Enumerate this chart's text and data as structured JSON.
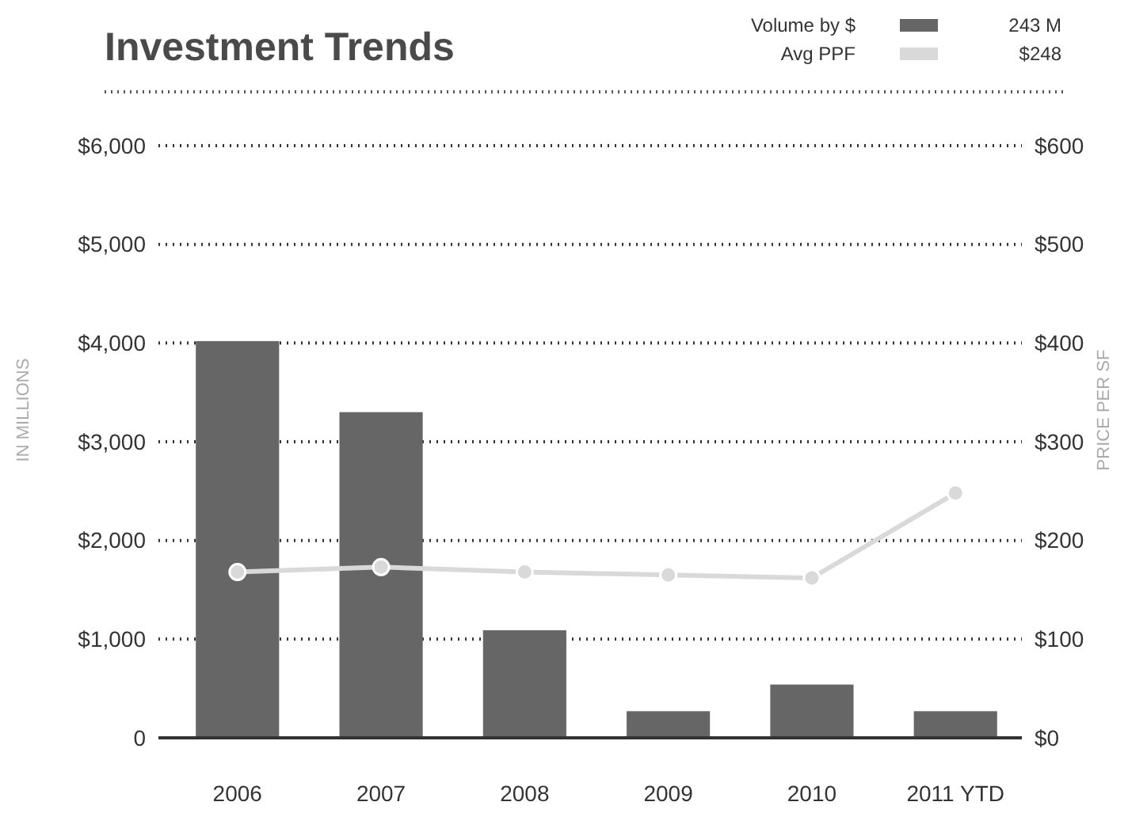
{
  "chart_data": {
    "type": "bar",
    "title": "Investment Trends",
    "ylabel": "IN MILLIONS",
    "y2label": "PRICE PER SF",
    "categories": [
      "2006",
      "2007",
      "2008",
      "2009",
      "2010",
      "2011 YTD"
    ],
    "series": [
      {
        "name": "Volume by $",
        "color": "#666666",
        "values": [
          4020,
          3300,
          1090,
          270,
          540,
          270
        ]
      },
      {
        "name": "Avg PPF",
        "color": "#d9d9d9",
        "type": "line",
        "axis": "y2",
        "values": [
          168,
          173,
          168,
          165,
          162,
          248
        ]
      }
    ],
    "ylim": [
      0,
      6000
    ],
    "yticks": [
      0,
      {
        "value": 1000,
        "label": "$1,000"
      },
      {
        "value": 2000,
        "label": "$2,000"
      },
      {
        "value": 3000,
        "label": "$3,000"
      },
      {
        "value": 4000,
        "label": "$4,000"
      },
      {
        "value": 5000,
        "label": "$5,000"
      },
      {
        "value": 6000,
        "label": "$6,000"
      }
    ],
    "y2lim": [
      0,
      600
    ],
    "y2ticks": [
      {
        "value": 0,
        "label": "$0"
      },
      {
        "value": 100,
        "label": "$100"
      },
      {
        "value": 200,
        "label": "$200"
      },
      {
        "value": 300,
        "label": "$300"
      },
      {
        "value": 400,
        "label": "$400"
      },
      {
        "value": 500,
        "label": "$500"
      },
      {
        "value": 600,
        "label": "$600"
      }
    ],
    "annotations": [
      "243 M",
      "$248"
    ],
    "grid": "y",
    "legend": "top right",
    "marker": "circle",
    "line_style": "solid"
  }
}
